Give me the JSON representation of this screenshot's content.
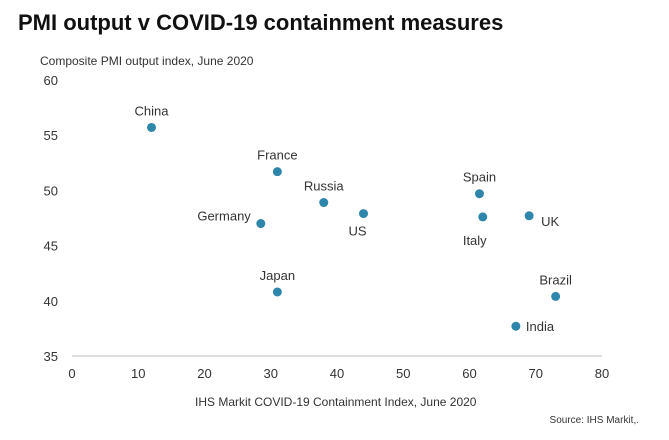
{
  "chart_data": {
    "type": "scatter",
    "title": "PMI output v COVID-19 containment measures",
    "ylabel": "Composite  PMI output  index,  June 2020",
    "xlabel": "IHS Markit  COVID-19  Containment  Index,  June 2020",
    "source": "Source: IHS Markit,.",
    "xlim": [
      0,
      80
    ],
    "ylim": [
      35,
      60
    ],
    "xticks": [
      "0",
      "10",
      "20",
      "30",
      "40",
      "50",
      "60",
      "70",
      "80"
    ],
    "yticks": [
      "35",
      "40",
      "45",
      "50",
      "55",
      "60"
    ],
    "grid": false,
    "point_color": "#2E86AB",
    "points": [
      {
        "label": "China",
        "x": 12,
        "y": 55.7,
        "label_pos": "above"
      },
      {
        "label": "France",
        "x": 31,
        "y": 51.7,
        "label_pos": "above"
      },
      {
        "label": "Russia",
        "x": 38,
        "y": 48.9,
        "label_pos": "above"
      },
      {
        "label": "Germany",
        "x": 28.5,
        "y": 47.0,
        "label_pos": "left"
      },
      {
        "label": "US",
        "x": 44,
        "y": 47.9,
        "label_pos": "below"
      },
      {
        "label": "Japan",
        "x": 31,
        "y": 40.8,
        "label_pos": "above"
      },
      {
        "label": "Spain",
        "x": 61.5,
        "y": 49.7,
        "label_pos": "above"
      },
      {
        "label": "Italy",
        "x": 62,
        "y": 47.6,
        "label_pos": "below"
      },
      {
        "label": "UK",
        "x": 69,
        "y": 47.7,
        "label_pos": "right"
      },
      {
        "label": "Brazil",
        "x": 73,
        "y": 40.4,
        "label_pos": "above"
      },
      {
        "label": "India",
        "x": 67,
        "y": 37.7,
        "label_pos": "right"
      }
    ]
  }
}
